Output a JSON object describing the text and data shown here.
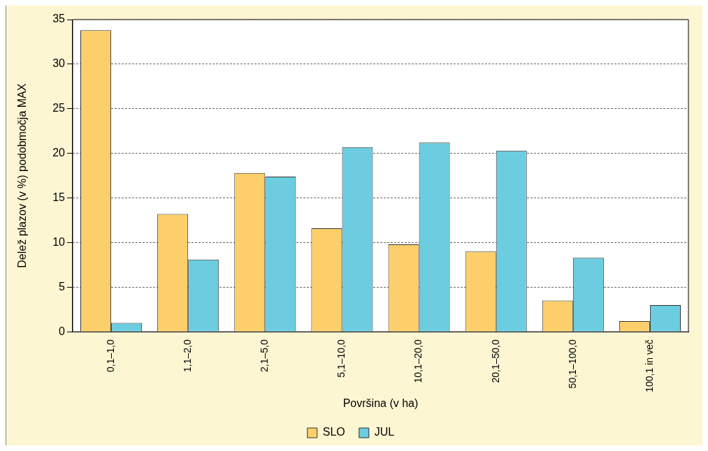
{
  "chart_data": {
    "type": "bar",
    "xlabel": "Površina (v ha)",
    "ylabel": "Delež plazov (v %) podobmočja MAX",
    "categories": [
      "0,1–1,0",
      "1,1–2,0",
      "2,1–5,0",
      "5,1–10,0",
      "10,1–20,0",
      "20,1–50,0",
      "50,1–100,0",
      "100,1 in več"
    ],
    "series": [
      {
        "name": "SLO",
        "color": "#fccf6a",
        "values": [
          33.8,
          13.2,
          17.8,
          11.6,
          9.8,
          9.0,
          3.5,
          1.2
        ]
      },
      {
        "name": "JUL",
        "color": "#6ccde0",
        "values": [
          1.0,
          8.1,
          17.4,
          20.7,
          21.2,
          20.3,
          8.3,
          3.0
        ]
      }
    ],
    "ylim": [
      0,
      35
    ],
    "yticks": [
      0,
      5,
      10,
      15,
      20,
      25,
      30,
      35
    ],
    "grid": "y",
    "legend": "bottom"
  }
}
